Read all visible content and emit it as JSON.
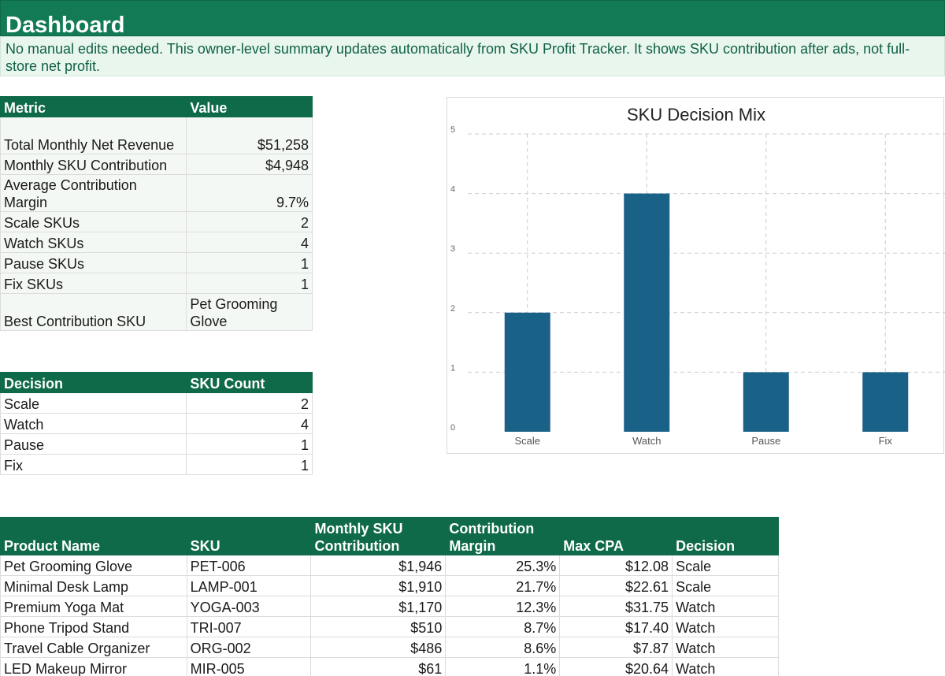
{
  "header": {
    "title": "Dashboard",
    "note": "No manual edits needed. This owner-level summary updates automatically from SKU Profit Tracker. It shows SKU contribution after ads, not full-store net profit."
  },
  "metrics": {
    "headers": [
      "Metric",
      "Value"
    ],
    "rows": [
      {
        "label": "Total Monthly Net Revenue",
        "value": "$51,258"
      },
      {
        "label": "Monthly SKU Contribution",
        "value": "$4,948"
      },
      {
        "label": "Average Contribution Margin",
        "value": "9.7%"
      },
      {
        "label": "Scale SKUs",
        "value": "2"
      },
      {
        "label": "Watch SKUs",
        "value": "4"
      },
      {
        "label": "Pause SKUs",
        "value": "1"
      },
      {
        "label": "Fix SKUs",
        "value": "1"
      },
      {
        "label": "Best Contribution SKU",
        "value": "Pet Grooming Glove"
      }
    ]
  },
  "decisions": {
    "headers": [
      "Decision",
      "SKU Count"
    ],
    "rows": [
      {
        "decision": "Scale",
        "count": "2"
      },
      {
        "decision": "Watch",
        "count": "4"
      },
      {
        "decision": "Pause",
        "count": "1"
      },
      {
        "decision": "Fix",
        "count": "1"
      }
    ]
  },
  "products": {
    "headers": [
      "Product Name",
      "SKU",
      "Monthly SKU Contribution",
      "Contribution Margin",
      "Max CPA",
      "Decision"
    ],
    "rows": [
      [
        "Pet Grooming Glove",
        "PET-006",
        "$1,946",
        "25.3%",
        "$12.08",
        "Scale"
      ],
      [
        "Minimal Desk Lamp",
        "LAMP-001",
        "$1,910",
        "21.7%",
        "$22.61",
        "Scale"
      ],
      [
        "Premium Yoga Mat",
        "YOGA-003",
        "$1,170",
        "12.3%",
        "$31.75",
        "Watch"
      ],
      [
        "Phone Tripod Stand",
        "TRI-007",
        "$510",
        "8.7%",
        "$17.40",
        "Watch"
      ],
      [
        "Travel Cable Organizer",
        "ORG-002",
        "$486",
        "8.6%",
        "$7.87",
        "Watch"
      ],
      [
        "LED Makeup Mirror",
        "MIR-005",
        "$61",
        "1.1%",
        "$20.64",
        "Watch"
      ]
    ]
  },
  "chart_data": {
    "type": "bar",
    "title": "SKU Decision Mix",
    "categories": [
      "Scale",
      "Watch",
      "Pause",
      "Fix"
    ],
    "values": [
      2,
      4,
      1,
      1
    ],
    "ylim": [
      0,
      5
    ],
    "yticks": [
      "0",
      "1",
      "2",
      "3",
      "4",
      "5"
    ],
    "grid": true,
    "bar_color": "#1a6188"
  }
}
